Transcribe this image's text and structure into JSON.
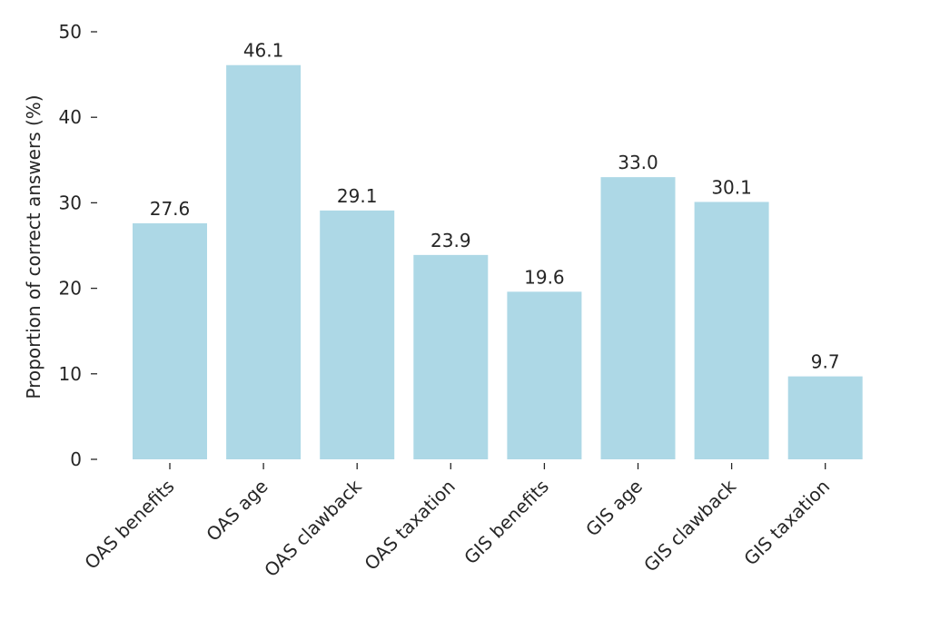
{
  "chart_data": {
    "type": "bar",
    "categories": [
      "OAS benefits",
      "OAS age",
      "OAS clawback",
      "OAS taxation",
      "GIS benefits",
      "GIS age",
      "GIS clawback",
      "GIS taxation"
    ],
    "values": [
      27.6,
      46.1,
      29.1,
      23.9,
      19.6,
      33.0,
      30.1,
      9.7
    ],
    "value_labels": [
      "27.6",
      "46.1",
      "29.1",
      "23.9",
      "19.6",
      "33.0",
      "30.1",
      "9.7"
    ],
    "ylabel": "Proportion of correct answers (%)",
    "xlabel": "",
    "ylim": [
      0,
      50
    ],
    "yticks": [
      0,
      10,
      20,
      30,
      40,
      50
    ],
    "ytick_labels": [
      "0",
      "10",
      "20",
      "30",
      "40",
      "50"
    ],
    "grid": false,
    "bar_color": "#add8e6"
  }
}
